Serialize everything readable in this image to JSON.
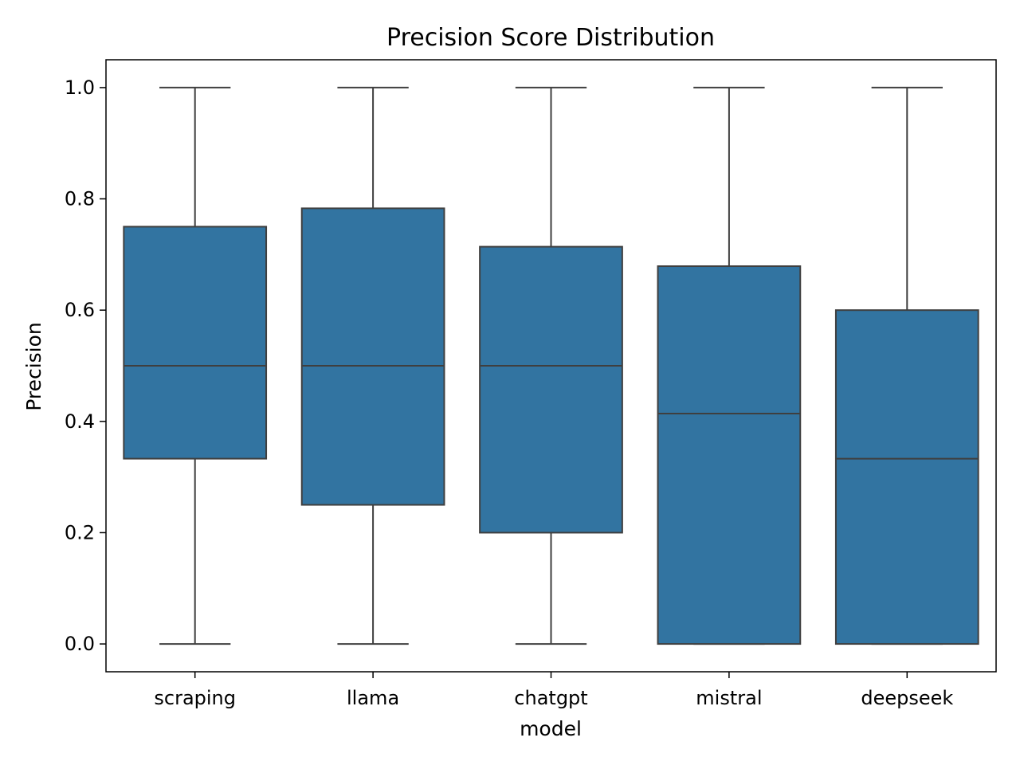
{
  "chart_data": {
    "type": "box",
    "title": "Precision Score Distribution",
    "xlabel": "model",
    "ylabel": "Precision",
    "ylim": [
      -0.05,
      1.05
    ],
    "yticks": [
      "0.0",
      "0.2",
      "0.4",
      "0.6",
      "0.8",
      "1.0"
    ],
    "grid": false,
    "color": "#3274a1",
    "categories": [
      "scraping",
      "llama",
      "chatgpt",
      "mistral",
      "deepseek"
    ],
    "boxes": [
      {
        "label": "scraping",
        "min": 0.0,
        "q1": 0.333,
        "median": 0.5,
        "q3": 0.75,
        "max": 1.0
      },
      {
        "label": "llama",
        "min": 0.0,
        "q1": 0.25,
        "median": 0.5,
        "q3": 0.783,
        "max": 1.0
      },
      {
        "label": "chatgpt",
        "min": 0.0,
        "q1": 0.2,
        "median": 0.5,
        "q3": 0.714,
        "max": 1.0
      },
      {
        "label": "mistral",
        "min": 0.0,
        "q1": 0.0,
        "median": 0.414,
        "q3": 0.679,
        "max": 1.0
      },
      {
        "label": "deepseek",
        "min": 0.0,
        "q1": 0.0,
        "median": 0.333,
        "q3": 0.6,
        "max": 1.0
      }
    ]
  }
}
